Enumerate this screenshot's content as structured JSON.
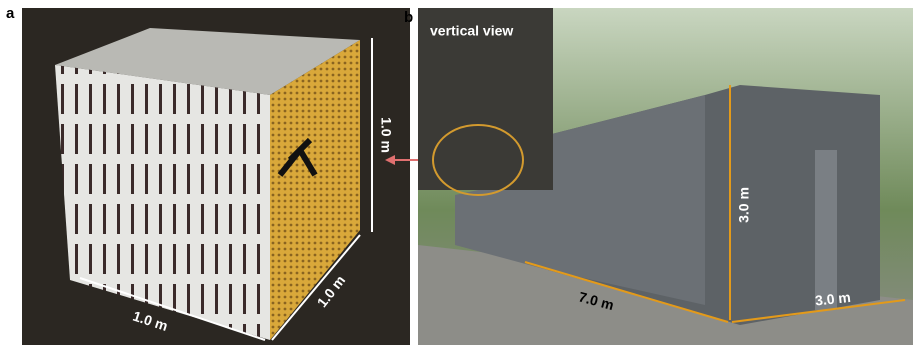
{
  "panels": [
    {
      "label": "a",
      "dimensions": [
        "1.0 m",
        "1.0 m",
        "1.0 m"
      ]
    },
    {
      "label": "b",
      "inset": "vertical view",
      "dimensions": [
        "3.0 m",
        "7.0 m",
        "3.0 m"
      ]
    }
  ]
}
